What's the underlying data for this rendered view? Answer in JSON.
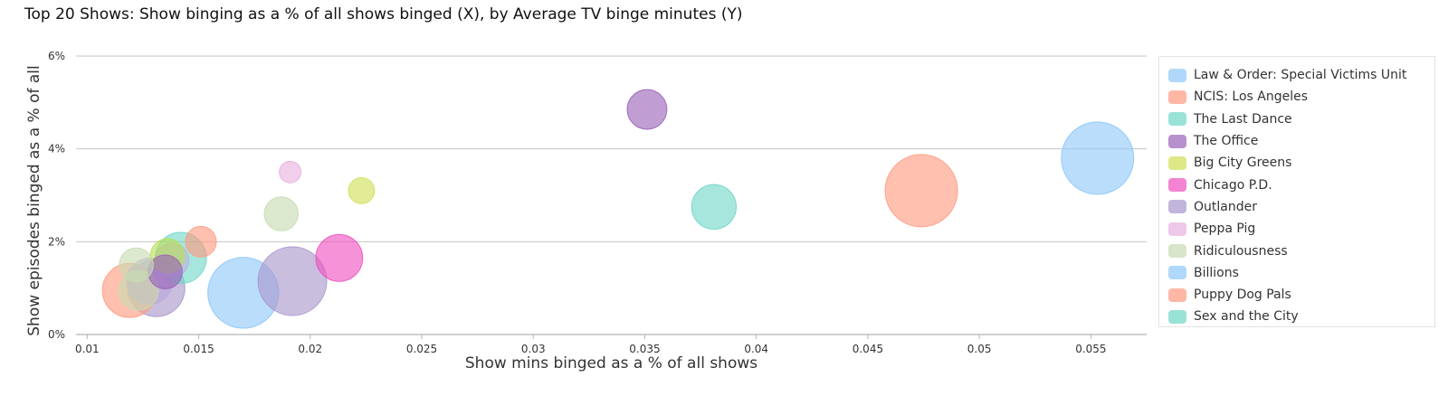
{
  "title": "Top 20 Shows: Show binging as a % of all shows binged (X), by Average TV binge minutes (Y)",
  "chart_data": {
    "type": "scatter",
    "xlabel": "Show mins binged as a % of all shows",
    "ylabel": "Show episodes binged as a % of all",
    "xlim": [
      0.0095,
      0.0575
    ],
    "ylim": [
      0,
      6
    ],
    "x_ticks": [
      "0.01",
      "0.015",
      "0.02",
      "0.025",
      "0.03",
      "0.035",
      "0.04",
      "0.045",
      "0.05",
      "0.055"
    ],
    "y_ticks": [
      "0%",
      "2%",
      "4%",
      "6%"
    ],
    "grid": "horizontal",
    "legend_position": "right",
    "series": [
      {
        "name": "Law & Order: Special Victims Unit",
        "color": "#8ec8f8",
        "x": 0.0553,
        "y": 3.8,
        "size": 100
      },
      {
        "name": "NCIS: Los Angeles",
        "color": "#ff9a80",
        "x": 0.0474,
        "y": 3.1,
        "size": 100
      },
      {
        "name": "The Last Dance",
        "color": "#6fd6c8",
        "x": 0.0381,
        "y": 2.75,
        "size": 38
      },
      {
        "name": "The Office",
        "color": "#9a63b8",
        "x": 0.0351,
        "y": 4.85,
        "size": 30
      },
      {
        "name": "Big City Greens",
        "color": "#d0e055",
        "x": 0.0223,
        "y": 3.1,
        "size": 13
      },
      {
        "name": "Chicago P.D.",
        "color": "#f050c0",
        "x": 0.0213,
        "y": 1.65,
        "size": 42
      },
      {
        "name": "Outlander",
        "color": "#a996cc",
        "x": 0.0192,
        "y": 1.15,
        "size": 90
      },
      {
        "name": "Peppa Pig",
        "color": "#e8b0e0",
        "x": 0.0191,
        "y": 3.5,
        "size": 9
      },
      {
        "name": "Ridiculousness",
        "color": "#c8dbb2",
        "x": 0.0187,
        "y": 2.6,
        "size": 22
      },
      {
        "name": "Billions",
        "color": "#8ec8f8",
        "x": 0.017,
        "y": 0.9,
        "size": 96
      },
      {
        "name": "Puppy Dog Pals",
        "color": "#ff9a80",
        "x": 0.0151,
        "y": 2.0,
        "size": 18
      },
      {
        "name": "Sex and the City",
        "color": "#6fd6c8",
        "x": 0.0142,
        "y": 1.65,
        "size": 50
      },
      {
        "name": "",
        "color": "#c0b0dd",
        "x": 0.0138,
        "y": 1.6,
        "size": 22
      },
      {
        "name": "",
        "color": "#b9de55",
        "x": 0.0136,
        "y": 1.7,
        "size": 22
      },
      {
        "name": "",
        "color": "#9a63b8",
        "x": 0.0135,
        "y": 1.35,
        "size": 22
      },
      {
        "name": "",
        "color": "#c8dbb2",
        "x": 0.0122,
        "y": 1.5,
        "size": 22
      },
      {
        "name": "",
        "color": "#a996cc",
        "x": 0.0131,
        "y": 1.0,
        "size": 62
      },
      {
        "name": "",
        "color": "#b8a8d8",
        "x": 0.0128,
        "y": 1.15,
        "size": 40
      },
      {
        "name": "",
        "color": "#ff9a80",
        "x": 0.0119,
        "y": 0.95,
        "size": 56
      },
      {
        "name": "",
        "color": "#c8dbb2",
        "x": 0.0123,
        "y": 0.95,
        "size": 30
      }
    ],
    "legend": [
      {
        "label": "Law & Order: Special Victims Unit",
        "color": "#8ec8f8"
      },
      {
        "label": "NCIS: Los Angeles",
        "color": "#ff9a80"
      },
      {
        "label": "The Last Dance",
        "color": "#6fd6c8"
      },
      {
        "label": "The Office",
        "color": "#9a63b8"
      },
      {
        "label": "Big City Greens",
        "color": "#d0e055"
      },
      {
        "label": "Chicago P.D.",
        "color": "#f050c0"
      },
      {
        "label": "Outlander",
        "color": "#a996cc"
      },
      {
        "label": "Peppa Pig",
        "color": "#e8b0e0"
      },
      {
        "label": "Ridiculousness",
        "color": "#c8dbb2"
      },
      {
        "label": "Billions",
        "color": "#8ec8f8"
      },
      {
        "label": "Puppy Dog Pals",
        "color": "#ff9a80"
      },
      {
        "label": "Sex and the City",
        "color": "#6fd6c8"
      }
    ]
  }
}
